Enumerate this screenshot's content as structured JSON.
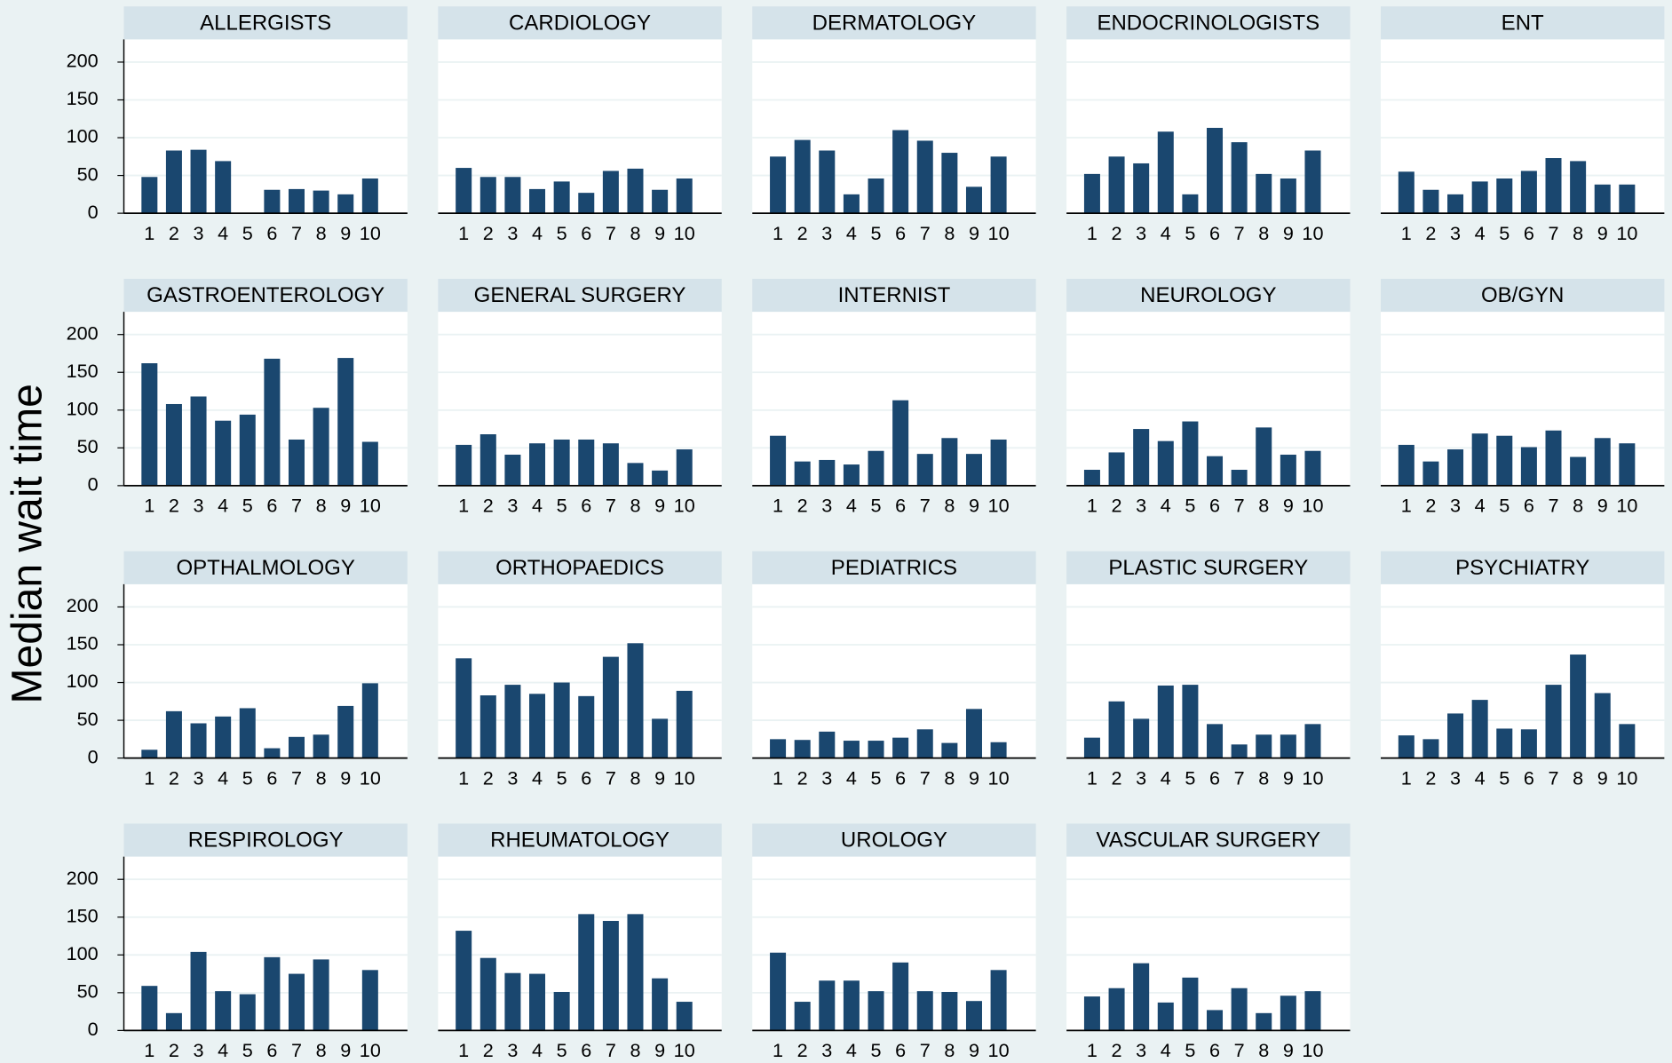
{
  "chart_data": {
    "type": "bar",
    "ylabel": "Median wait time",
    "categories": [
      "1",
      "2",
      "3",
      "4",
      "5",
      "6",
      "7",
      "8",
      "9",
      "10"
    ],
    "ylim": [
      0,
      230
    ],
    "yticks": [
      0,
      50,
      100,
      150,
      200
    ],
    "grid": true,
    "color": "#1a476f",
    "panels": [
      {
        "title": "ALLERGISTS",
        "values": [
          48,
          83,
          84,
          69,
          null,
          31,
          32,
          30,
          25,
          46
        ]
      },
      {
        "title": "CARDIOLOGY",
        "values": [
          60,
          48,
          48,
          32,
          42,
          27,
          56,
          59,
          31,
          46
        ]
      },
      {
        "title": "DERMATOLOGY",
        "values": [
          75,
          97,
          83,
          25,
          46,
          110,
          96,
          80,
          35,
          75
        ]
      },
      {
        "title": "ENDOCRINOLOGISTS",
        "values": [
          52,
          75,
          66,
          108,
          25,
          113,
          94,
          52,
          46,
          83
        ]
      },
      {
        "title": "ENT",
        "values": [
          55,
          31,
          25,
          42,
          46,
          56,
          73,
          69,
          38,
          38
        ]
      },
      {
        "title": "GASTROENTEROLOGY",
        "values": [
          162,
          108,
          118,
          86,
          94,
          168,
          61,
          103,
          169,
          58
        ]
      },
      {
        "title": "GENERAL SURGERY",
        "values": [
          54,
          68,
          41,
          56,
          61,
          61,
          56,
          30,
          20,
          48
        ]
      },
      {
        "title": "INTERNIST",
        "values": [
          66,
          32,
          34,
          28,
          46,
          113,
          42,
          63,
          42,
          61
        ]
      },
      {
        "title": "NEUROLOGY",
        "values": [
          21,
          44,
          75,
          59,
          85,
          39,
          21,
          77,
          41,
          46
        ]
      },
      {
        "title": "OB/GYN",
        "values": [
          54,
          32,
          48,
          69,
          66,
          51,
          73,
          38,
          63,
          56
        ]
      },
      {
        "title": "OPTHALMOLOGY",
        "values": [
          11,
          62,
          46,
          55,
          66,
          13,
          28,
          31,
          69,
          99
        ]
      },
      {
        "title": "ORTHOPAEDICS",
        "values": [
          132,
          83,
          97,
          85,
          100,
          82,
          134,
          152,
          52,
          89
        ]
      },
      {
        "title": "PEDIATRICS",
        "values": [
          25,
          24,
          35,
          23,
          23,
          27,
          38,
          20,
          65,
          21
        ]
      },
      {
        "title": "PLASTIC SURGERY",
        "values": [
          27,
          75,
          52,
          96,
          97,
          45,
          18,
          31,
          31,
          45
        ]
      },
      {
        "title": "PSYCHIATRY",
        "values": [
          30,
          25,
          59,
          77,
          39,
          38,
          97,
          137,
          86,
          45
        ]
      },
      {
        "title": "RESPIROLOGY",
        "values": [
          59,
          23,
          104,
          52,
          48,
          97,
          75,
          94,
          null,
          80
        ]
      },
      {
        "title": "RHEUMATOLOGY",
        "values": [
          132,
          96,
          76,
          75,
          51,
          154,
          145,
          154,
          69,
          38
        ]
      },
      {
        "title": "UROLOGY",
        "values": [
          103,
          38,
          66,
          66,
          52,
          90,
          52,
          51,
          39,
          80
        ]
      },
      {
        "title": "VASCULAR SURGERY",
        "values": [
          45,
          56,
          89,
          37,
          70,
          27,
          56,
          23,
          46,
          52
        ]
      }
    ]
  }
}
